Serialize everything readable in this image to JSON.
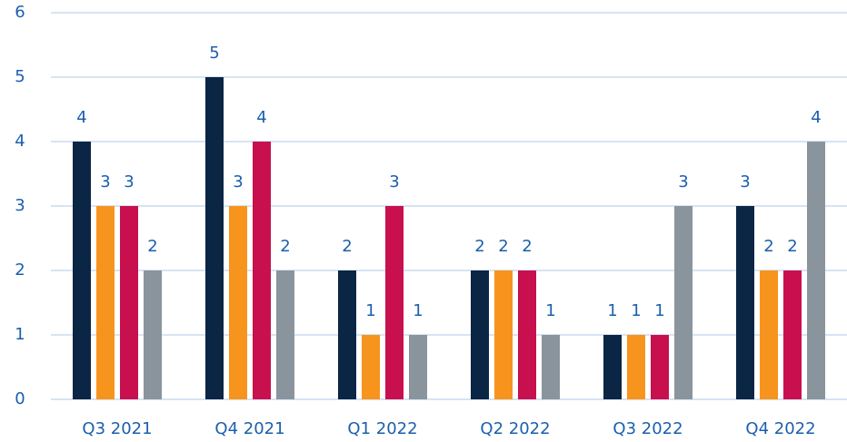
{
  "chart_data": {
    "type": "bar",
    "categories": [
      "Q3 2021",
      "Q4 2021",
      "Q1 2022",
      "Q2 2022",
      "Q3 2022",
      "Q4 2022"
    ],
    "series": [
      {
        "color": "#0b2545",
        "values": [
          4,
          5,
          2,
          2,
          1,
          3
        ]
      },
      {
        "color": "#f7941d",
        "values": [
          3,
          3,
          1,
          2,
          1,
          2
        ]
      },
      {
        "color": "#c8104f",
        "values": [
          3,
          4,
          3,
          2,
          1,
          2
        ]
      },
      {
        "color": "#8a949c",
        "values": [
          2,
          2,
          1,
          1,
          3,
          4
        ]
      }
    ],
    "ylim": [
      0,
      6
    ],
    "yticks": [
      0,
      1,
      2,
      3,
      4,
      5,
      6
    ],
    "grid": true
  }
}
